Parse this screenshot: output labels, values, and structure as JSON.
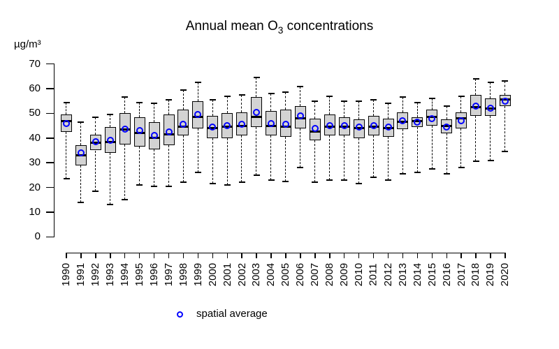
{
  "title": {
    "pre": "Annual mean O",
    "sub": "3",
    "post": " concentrations"
  },
  "y_axis": {
    "unit": "µg/m³",
    "ticks": [
      0,
      10,
      20,
      30,
      40,
      50,
      60,
      70
    ],
    "min": 0,
    "max": 70
  },
  "x_axis": {
    "years": [
      "1990",
      "1991",
      "1992",
      "1993",
      "1994",
      "1995",
      "1996",
      "1997",
      "1998",
      "1999",
      "2000",
      "2001",
      "2002",
      "2003",
      "2004",
      "2005",
      "2006",
      "2007",
      "2008",
      "2009",
      "2010",
      "2011",
      "2012",
      "2013",
      "2014",
      "2015",
      "2016",
      "2017",
      "2018",
      "2019",
      "2020"
    ]
  },
  "legend": {
    "label": "spatial average",
    "marker": "blue-open-circle",
    "marker_color": "#0000ff"
  },
  "colors": {
    "background": "#ffffff",
    "box_fill": "#d3d3d3",
    "box_border": "#000000",
    "median_line": "#000000",
    "whisker": "#000000",
    "mean_marker": "#0000ff",
    "axis": "#000000",
    "text": "#000000"
  },
  "chart_data": {
    "type": "boxplot",
    "title": "Annual mean O₃ concentrations",
    "xlabel": "",
    "ylabel": "µg/m³",
    "ylim": [
      0,
      70
    ],
    "grid": false,
    "legend_position": "bottom-center",
    "legend_entries": [
      "spatial average"
    ],
    "categories": [
      1990,
      1991,
      1992,
      1993,
      1994,
      1995,
      1996,
      1997,
      1998,
      1999,
      2000,
      2001,
      2002,
      2003,
      2004,
      2005,
      2006,
      2007,
      2008,
      2009,
      2010,
      2011,
      2012,
      2013,
      2014,
      2015,
      2016,
      2017,
      2018,
      2019,
      2020
    ],
    "series": [
      {
        "name": "whisker_low",
        "values": [
          23.5,
          14,
          18.5,
          13,
          15,
          21,
          20.5,
          20.5,
          22,
          26,
          21.5,
          21,
          22,
          25,
          23,
          22.5,
          28,
          22,
          23,
          23,
          21.5,
          24,
          23,
          25.5,
          26,
          27.5,
          25.5,
          28,
          30.5,
          31,
          34.5
        ]
      },
      {
        "name": "q1",
        "values": [
          42.5,
          29,
          35,
          34,
          37.5,
          36.5,
          35.5,
          37,
          41,
          44,
          40,
          40,
          41,
          44.5,
          41,
          40.5,
          44,
          39,
          41,
          41,
          40,
          41,
          40.5,
          43.5,
          44.5,
          45,
          42,
          44,
          49,
          49,
          53
        ]
      },
      {
        "name": "median",
        "values": [
          47,
          33,
          38,
          38.5,
          43.5,
          42,
          40,
          41.5,
          44.5,
          48.5,
          44,
          44.5,
          45,
          48.5,
          45,
          44.5,
          48,
          42.5,
          44.5,
          44.5,
          44,
          44.5,
          44,
          46.5,
          47,
          48.5,
          45,
          48,
          52.5,
          52,
          55.5
        ]
      },
      {
        "name": "q3",
        "values": [
          49.5,
          37,
          41.5,
          44.5,
          50,
          48.5,
          46.5,
          49.5,
          51.5,
          55,
          49,
          50,
          50.5,
          56.5,
          51,
          51.5,
          53,
          48,
          49.5,
          48.5,
          47.5,
          49,
          48,
          50.5,
          48.5,
          51.5,
          47.5,
          50.5,
          57.5,
          56,
          57.5
        ]
      },
      {
        "name": "whisker_high",
        "values": [
          54.5,
          46.5,
          48.5,
          49.5,
          56.5,
          54.5,
          54,
          55.5,
          59.5,
          62.5,
          55.5,
          57,
          57.5,
          64.5,
          58,
          58.5,
          61,
          55,
          57,
          55,
          55,
          55.5,
          54,
          56.5,
          54.5,
          56,
          53,
          57,
          64,
          62.5,
          63
        ]
      },
      {
        "name": "spatial_average_mean",
        "values": [
          46,
          34,
          38.5,
          39,
          43.5,
          43,
          41,
          42.5,
          45.5,
          49.5,
          44.5,
          45,
          45.5,
          50.5,
          46,
          45.5,
          49,
          44,
          45,
          45,
          44.5,
          45,
          44.5,
          47,
          46.5,
          48,
          44.5,
          47,
          53,
          52,
          55
        ]
      }
    ]
  }
}
